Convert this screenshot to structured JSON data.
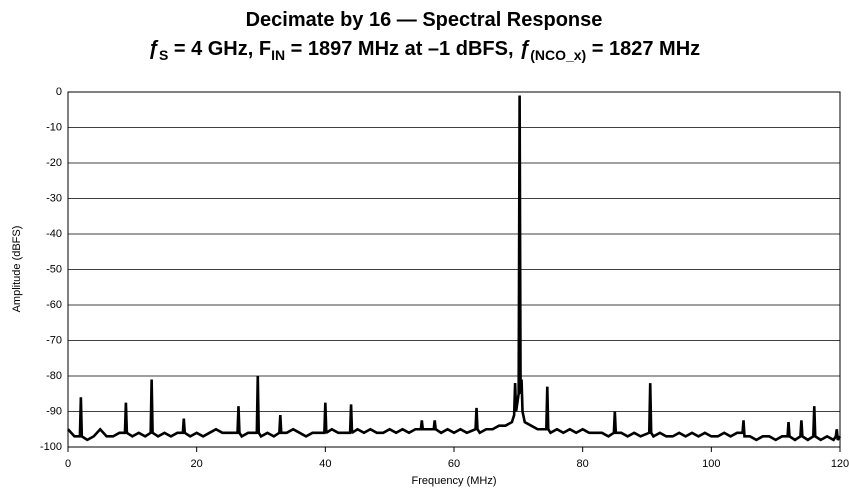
{
  "chart_data": {
    "type": "line",
    "title": "Decimate by 16 — Spectral Response",
    "subtitle": [
      "ƒ",
      "S",
      " = 4 GHz, F",
      "IN",
      " = 1897 MHz at –1 dBFS, ",
      "ƒ",
      "(NCO_x)",
      " = 1827 MHz"
    ],
    "x_label": "Frequency (MHz)",
    "y_label": "Amplitude (dBFS)",
    "xlim": [
      0,
      120
    ],
    "xticks": [
      0,
      20,
      40,
      60,
      80,
      100,
      120
    ],
    "ylim": [
      -100,
      0
    ],
    "yticks": [
      -100,
      -90,
      -80,
      -70,
      -60,
      -50,
      -40,
      -30,
      -20,
      -10,
      0
    ],
    "grid": true,
    "x": [
      0,
      1,
      1.85,
      2,
      2.15,
      3,
      4,
      5,
      6,
      7,
      8,
      8.85,
      9,
      9.15,
      10,
      11,
      12,
      12.85,
      13,
      13.15,
      14,
      15,
      16,
      17,
      17.85,
      18,
      18.15,
      19,
      20,
      21,
      22,
      23,
      24,
      25,
      26.35,
      26.5,
      26.65,
      27,
      28,
      29.35,
      29.5,
      29.65,
      30,
      31,
      32,
      32.85,
      33,
      33.15,
      34,
      35,
      36,
      37,
      38,
      39,
      39.85,
      40,
      40.15,
      41,
      42,
      43,
      43.85,
      44,
      44.15,
      45,
      46,
      47,
      48,
      49,
      50,
      51,
      52,
      53,
      54,
      54.85,
      55,
      55.15,
      56,
      56.85,
      57,
      57.15,
      58,
      59,
      60,
      61,
      62,
      63.35,
      63.5,
      63.65,
      64,
      65,
      66,
      67,
      68,
      69,
      69.35,
      69.5,
      69.65,
      70.05,
      70.2,
      70.35,
      70.5,
      70.65,
      71,
      72,
      73,
      74.35,
      74.5,
      74.65,
      75,
      76,
      77,
      78,
      79,
      80,
      81,
      82,
      83,
      84,
      84.85,
      85,
      85.15,
      86,
      87,
      88,
      89,
      90.35,
      90.5,
      90.65,
      91,
      92,
      93,
      94,
      95,
      96,
      97,
      98,
      99,
      100,
      101,
      102,
      103,
      104,
      104.85,
      105,
      105.15,
      106,
      107,
      108,
      109,
      110,
      111,
      111.85,
      112,
      112.15,
      113,
      113.85,
      114,
      114.15,
      115,
      115.85,
      116,
      116.15,
      117,
      118,
      119,
      119.35,
      119.5,
      119.65,
      120
    ],
    "series": [
      {
        "color": "#000000",
        "values": [
          -95,
          -97,
          -97,
          -86,
          -97,
          -98,
          -97,
          -95,
          -97,
          -97,
          -96,
          -96,
          -87.5,
          -96,
          -97,
          -96,
          -97,
          -96,
          -81,
          -96,
          -97,
          -96,
          -97,
          -96,
          -96,
          -92,
          -96,
          -97,
          -96,
          -97,
          -96,
          -95,
          -96,
          -96,
          -96,
          -88.5,
          -96,
          -97,
          -96,
          -96,
          -80,
          -96,
          -97,
          -96,
          -97,
          -96,
          -91,
          -96,
          -96,
          -95,
          -96,
          -97,
          -96,
          -96,
          -96,
          -87.5,
          -96,
          -95,
          -96,
          -96,
          -96,
          -88,
          -96,
          -95,
          -96,
          -95,
          -96,
          -96,
          -95,
          -96,
          -95,
          -96,
          -95,
          -95,
          -92.5,
          -95,
          -95,
          -95,
          -92.5,
          -95,
          -96,
          -95,
          -96,
          -95,
          -96,
          -95,
          -89,
          -95,
          -96,
          -95,
          -95,
          -94,
          -94,
          -93,
          -91,
          -82,
          -90,
          -85,
          -1,
          -85,
          -81,
          -90,
          -93,
          -94,
          -95,
          -95,
          -83,
          -95,
          -96,
          -95,
          -96,
          -95,
          -96,
          -95,
          -96,
          -96,
          -96,
          -97,
          -96,
          -90,
          -96,
          -96,
          -97,
          -96,
          -97,
          -96,
          -82,
          -96,
          -97,
          -96,
          -97,
          -97,
          -96,
          -97,
          -96,
          -97,
          -96,
          -97,
          -97,
          -96,
          -97,
          -96,
          -96,
          -92.5,
          -97,
          -97,
          -98,
          -97,
          -97,
          -98,
          -97,
          -97,
          -93,
          -97,
          -98,
          -97,
          -92.5,
          -97,
          -98,
          -97,
          -88.5,
          -97,
          -98,
          -97,
          -98,
          -97,
          -95,
          -98,
          -97
        ]
      }
    ]
  }
}
